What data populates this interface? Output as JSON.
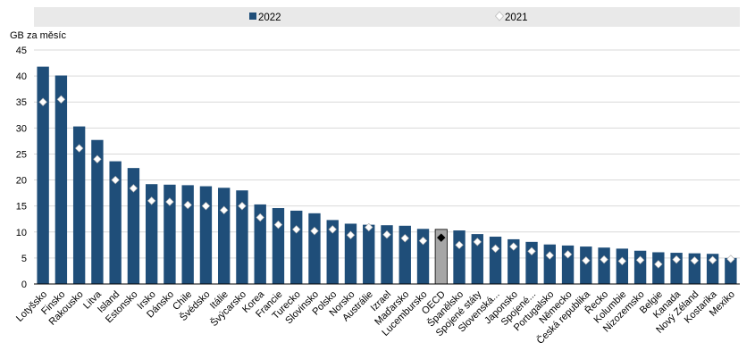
{
  "chart_data": {
    "type": "bar",
    "ylabel": "GB za měsíc",
    "ylim": [
      0,
      45
    ],
    "yticks": [
      0,
      5,
      10,
      15,
      20,
      25,
      30,
      35,
      40,
      45
    ],
    "legend": {
      "position": "top",
      "items": [
        "2022",
        "2021"
      ]
    },
    "categories": [
      "Lotyšsko",
      "Finsko",
      "Rakousko",
      "Litva",
      "Island",
      "Estonsko",
      "Irsko",
      "Dánsko",
      "Chile",
      "Švédsko",
      "Itálie",
      "Švýcarsko",
      "Korea",
      "Francie",
      "Turecko",
      "Slovinsko",
      "Polsko",
      "Norsko",
      "Austrálie",
      "Izrael",
      "Maďarsko",
      "Lucembursko",
      "OECD",
      "Španělsko",
      "Spojené státy",
      "Slovenská...",
      "Japonsko",
      "Spojené...",
      "Portugalsko",
      "Německo",
      "Česká republika",
      "Řecko",
      "Kolumbie",
      "Nizozemsko",
      "Belgie",
      "Kanada",
      "Nový Zéland",
      "Kostarika",
      "Mexiko"
    ],
    "highlight_category": "OECD",
    "series": [
      {
        "name": "2022",
        "style": "bar",
        "color": "#1F4E79",
        "highlight_color": "#A6A6A6",
        "values": [
          41.8,
          40.1,
          30.3,
          27.7,
          23.6,
          22.3,
          19.2,
          19.1,
          19.0,
          18.8,
          18.5,
          18.0,
          15.3,
          14.6,
          14.1,
          13.6,
          12.3,
          11.6,
          11.4,
          11.3,
          11.2,
          10.6,
          10.5,
          10.3,
          9.6,
          9.1,
          8.6,
          8.1,
          7.6,
          7.4,
          7.2,
          7.0,
          6.8,
          6.4,
          6.1,
          6.0,
          5.9,
          5.8,
          5.0
        ]
      },
      {
        "name": "2021",
        "style": "marker",
        "color": "#FFFFFF",
        "highlight_color": "#000000",
        "values": [
          35.0,
          35.5,
          26.1,
          24.0,
          20.0,
          18.4,
          16.0,
          15.8,
          15.2,
          15.0,
          14.2,
          15.0,
          12.8,
          11.4,
          10.5,
          10.2,
          10.5,
          9.4,
          10.9,
          9.5,
          8.8,
          8.3,
          8.9,
          7.5,
          8.1,
          6.8,
          7.2,
          6.3,
          5.5,
          5.7,
          4.5,
          4.7,
          4.4,
          4.6,
          3.8,
          4.7,
          4.5,
          4.6,
          4.8
        ]
      }
    ]
  }
}
